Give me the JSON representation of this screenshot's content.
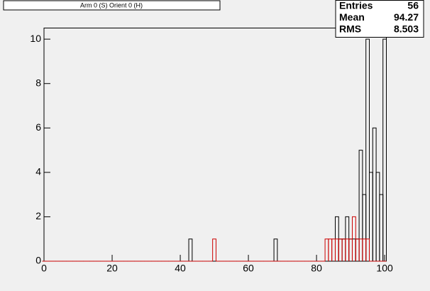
{
  "chart_data": {
    "type": "histogram",
    "title": "Arm 0 (S) Orient 0 (H)",
    "bins": [
      -0.5,
      0.5,
      1.5,
      2.5,
      3.5,
      4.5,
      5.5,
      6.5,
      7.5,
      8.5,
      9.5,
      10.5,
      11.5,
      12.5,
      13.5,
      14.5,
      15.5,
      16.5,
      17.5,
      18.5,
      19.5,
      20.5,
      21.5,
      22.5,
      23.5,
      24.5,
      25.5,
      26.5,
      27.5,
      28.5,
      29.5,
      30.5,
      31.5,
      32.5,
      33.5,
      34.5,
      35.5,
      36.5,
      37.5,
      38.5,
      39.5,
      40.5,
      41.5,
      42.5,
      43.5,
      44.5,
      45.5,
      46.5,
      47.5,
      48.5,
      49.5,
      50.5,
      51.5,
      52.5,
      53.5,
      54.5,
      55.5,
      56.5,
      57.5,
      58.5,
      59.5,
      60.5,
      61.5,
      62.5,
      63.5,
      64.5,
      65.5,
      66.5,
      67.5,
      68.5,
      69.5,
      70.5,
      71.5,
      72.5,
      73.5,
      74.5,
      75.5,
      76.5,
      77.5,
      78.5,
      79.5,
      80.5,
      81.5,
      82.5,
      83.5,
      84.5,
      85.5,
      86.5,
      87.5,
      88.5,
      89.5,
      90.5,
      91.5,
      92.5,
      93.5,
      94.5,
      95.5,
      96.5,
      97.5,
      98.5,
      99.5,
      100.5
    ],
    "series": [
      {
        "color": "#000000",
        "values": [
          0,
          0,
          0,
          0,
          0,
          0,
          0,
          0,
          0,
          0,
          0,
          0,
          0,
          0,
          0,
          0,
          0,
          0,
          0,
          0,
          0,
          0,
          0,
          0,
          0,
          0,
          0,
          0,
          0,
          0,
          0,
          0,
          0,
          0,
          0,
          0,
          0,
          0,
          0,
          0,
          0,
          0,
          0,
          1,
          0,
          0,
          0,
          0,
          0,
          0,
          0,
          0,
          0,
          0,
          0,
          0,
          0,
          0,
          0,
          0,
          0,
          0,
          0,
          0,
          0,
          0,
          0,
          0,
          1,
          0,
          0,
          0,
          0,
          0,
          0,
          0,
          0,
          0,
          0,
          0,
          0,
          0,
          0,
          0,
          0,
          0,
          2,
          1,
          1,
          2,
          1,
          1,
          1,
          5,
          3,
          10,
          4,
          6,
          4,
          3,
          10
        ]
      },
      {
        "color": "#cc0000",
        "values": [
          0,
          0,
          0,
          0,
          0,
          0,
          0,
          0,
          0,
          0,
          0,
          0,
          0,
          0,
          0,
          0,
          0,
          0,
          0,
          0,
          0,
          0,
          0,
          0,
          0,
          0,
          0,
          0,
          0,
          0,
          0,
          0,
          0,
          0,
          0,
          0,
          0,
          0,
          0,
          0,
          0,
          0,
          0,
          0,
          0,
          0,
          0,
          0,
          0,
          0,
          1,
          0,
          0,
          0,
          0,
          0,
          0,
          0,
          0,
          0,
          0,
          0,
          0,
          0,
          0,
          0,
          0,
          0,
          0,
          0,
          0,
          0,
          0,
          0,
          0,
          0,
          0,
          0,
          0,
          0,
          0,
          0,
          0,
          1,
          1,
          1,
          1,
          1,
          1,
          1,
          1,
          2,
          1,
          1,
          1,
          1,
          0,
          0,
          0,
          0,
          0
        ]
      }
    ],
    "xlim": [
      0,
      100.5
    ],
    "xticks": [
      0,
      20,
      40,
      60,
      80,
      100
    ],
    "ylim": [
      0,
      10.5
    ],
    "yticks": [
      0,
      2,
      4,
      6,
      8,
      10
    ],
    "stats": [
      {
        "label": "Entries",
        "value": "56"
      },
      {
        "label": "Mean",
        "value": "94.27"
      },
      {
        "label": "RMS",
        "value": "8.503"
      }
    ]
  }
}
